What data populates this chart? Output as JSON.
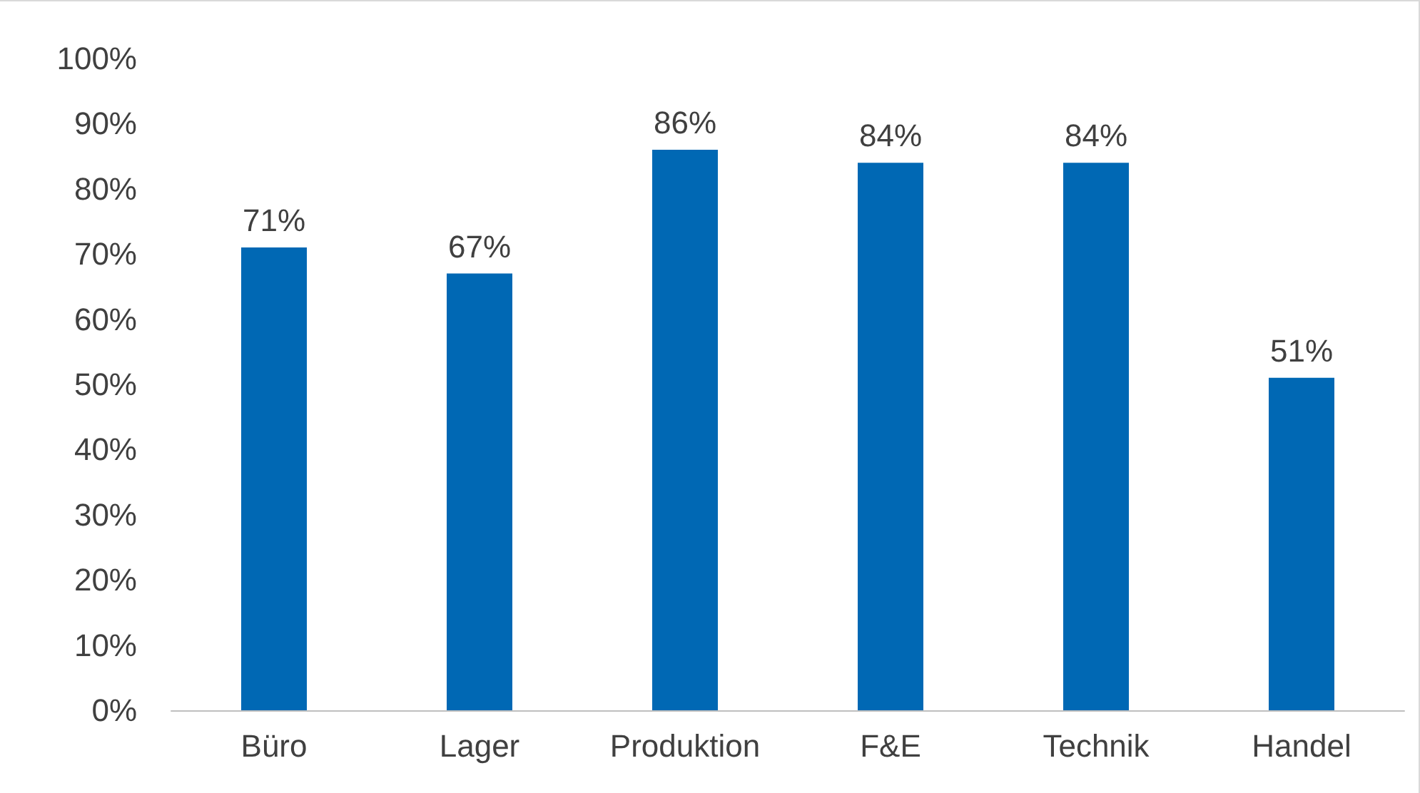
{
  "chart_data": {
    "type": "bar",
    "categories": [
      "Büro",
      "Lager",
      "Produktion",
      "F&E",
      "Technik",
      "Handel"
    ],
    "values": [
      71,
      67,
      86,
      84,
      84,
      51
    ],
    "value_labels": [
      "71%",
      "67%",
      "86%",
      "84%",
      "84%",
      "51%"
    ],
    "color": "#0068b4",
    "ylim": [
      0,
      100
    ],
    "yticks": [
      {
        "value": 0,
        "label": "0%"
      },
      {
        "value": 10,
        "label": "10%"
      },
      {
        "value": 20,
        "label": "20%"
      },
      {
        "value": 30,
        "label": "30%"
      },
      {
        "value": 40,
        "label": "40%"
      },
      {
        "value": 50,
        "label": "50%"
      },
      {
        "value": 60,
        "label": "60%"
      },
      {
        "value": 70,
        "label": "70%"
      },
      {
        "value": 80,
        "label": "80%"
      },
      {
        "value": 90,
        "label": "90%"
      },
      {
        "value": 100,
        "label": "100%"
      }
    ],
    "grid": false
  }
}
